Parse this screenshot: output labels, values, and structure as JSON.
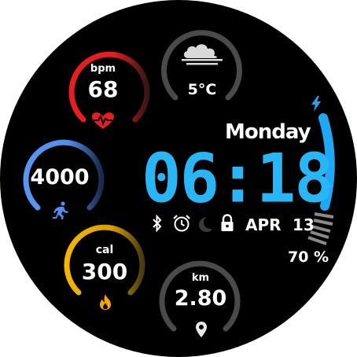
{
  "heart_rate": {
    "unit": "bpm",
    "value": "68",
    "level": 0.55,
    "color": "#e61e1e",
    "icon": "heart-pulse-icon"
  },
  "weather": {
    "temperature": "5°C",
    "icon": "cloud-fog-icon"
  },
  "steps": {
    "value": "4000",
    "level": 0.45,
    "color": "#4f8ff0",
    "icon": "runner-icon"
  },
  "calories": {
    "unit": "cal",
    "value": "300",
    "level": 0.55,
    "color": "#f5b400",
    "icon": "flame-icon"
  },
  "distance": {
    "unit": "km",
    "value": "2.80",
    "icon": "location-pin-icon"
  },
  "day": "Monday",
  "time": "06:18",
  "status_icons": [
    "bluetooth-icon",
    "alarm-clock-icon",
    "moon-icon",
    "lock-icon"
  ],
  "date": {
    "month": "APR",
    "day": "13"
  },
  "battery": {
    "percent_text": "70 %",
    "level": 0.7,
    "color": "#1ea8f5",
    "icon": "lightning-icon"
  }
}
